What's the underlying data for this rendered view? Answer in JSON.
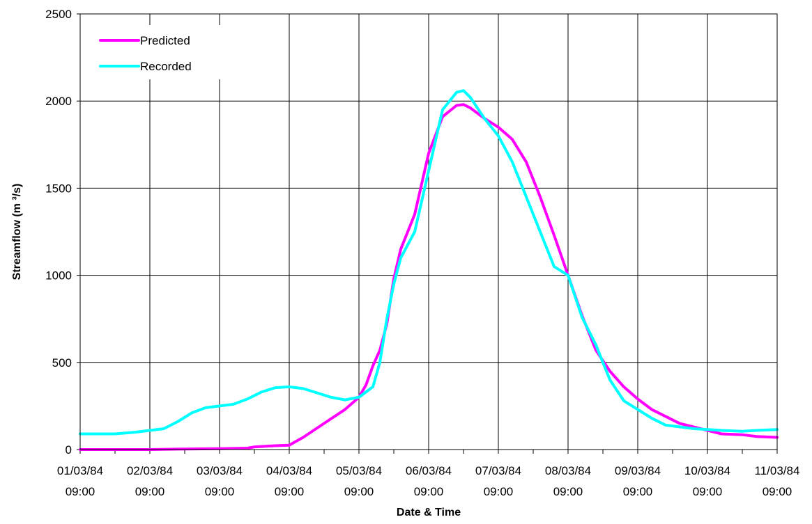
{
  "chart_data": {
    "type": "line",
    "title": "",
    "xlabel": "Date & Time",
    "ylabel": "Streamflow (m ³/s)",
    "ylim": [
      0,
      2500
    ],
    "xlim": [
      0,
      10
    ],
    "yticks": [
      0,
      500,
      1000,
      1500,
      2000,
      2500
    ],
    "xticks": [
      {
        "value": 0,
        "date": "01/03/84",
        "time": "09:00"
      },
      {
        "value": 1,
        "date": "02/03/84",
        "time": "09:00"
      },
      {
        "value": 2,
        "date": "03/03/84",
        "time": "09:00"
      },
      {
        "value": 3,
        "date": "04/03/84",
        "time": "09:00"
      },
      {
        "value": 4,
        "date": "05/03/84",
        "time": "09:00"
      },
      {
        "value": 5,
        "date": "06/03/84",
        "time": "09:00"
      },
      {
        "value": 6,
        "date": "07/03/84",
        "time": "09:00"
      },
      {
        "value": 7,
        "date": "08/03/84",
        "time": "09:00"
      },
      {
        "value": 8,
        "date": "09/03/84",
        "time": "09:00"
      },
      {
        "value": 9,
        "date": "10/03/84",
        "time": "09:00"
      },
      {
        "value": 10,
        "date": "11/03/84",
        "time": "09:00"
      }
    ],
    "grid": true,
    "legend_position": "top-left",
    "series": [
      {
        "name": "Predicted",
        "color": "#ff00ff",
        "x": [
          0,
          1,
          1.5,
          2,
          2.4,
          2.5,
          2.8,
          3.0,
          3.2,
          3.5,
          3.8,
          4.0,
          4.1,
          4.2,
          4.3,
          4.4,
          4.5,
          4.6,
          4.8,
          5.0,
          5.2,
          5.4,
          5.5,
          5.6,
          5.8,
          6.0,
          6.2,
          6.4,
          6.6,
          6.8,
          7.0,
          7.2,
          7.4,
          7.6,
          7.8,
          8.0,
          8.2,
          8.4,
          8.6,
          8.8,
          9.0,
          9.2,
          9.5,
          9.7,
          10.0
        ],
        "values": [
          0,
          0,
          3,
          5,
          8,
          15,
          22,
          25,
          70,
          150,
          230,
          300,
          370,
          480,
          570,
          720,
          980,
          1150,
          1350,
          1700,
          1910,
          1975,
          1980,
          1960,
          1900,
          1850,
          1780,
          1650,
          1450,
          1230,
          1000,
          770,
          570,
          450,
          360,
          290,
          230,
          190,
          150,
          130,
          110,
          90,
          85,
          75,
          70
        ]
      },
      {
        "name": "Recorded",
        "color": "#00ffff",
        "x": [
          0,
          0.5,
          0.8,
          1.0,
          1.2,
          1.4,
          1.6,
          1.8,
          2.0,
          2.2,
          2.4,
          2.6,
          2.8,
          3.0,
          3.2,
          3.4,
          3.6,
          3.8,
          4.0,
          4.2,
          4.3,
          4.4,
          4.5,
          4.6,
          4.8,
          5.0,
          5.2,
          5.4,
          5.5,
          5.6,
          5.8,
          6.0,
          6.2,
          6.4,
          6.6,
          6.8,
          7.0,
          7.2,
          7.4,
          7.6,
          7.8,
          8.0,
          8.2,
          8.4,
          8.6,
          8.8,
          9.0,
          9.2,
          9.5,
          9.7,
          10.0
        ],
        "values": [
          90,
          90,
          100,
          110,
          120,
          160,
          210,
          240,
          250,
          260,
          290,
          330,
          355,
          360,
          350,
          325,
          300,
          285,
          300,
          360,
          500,
          750,
          950,
          1100,
          1250,
          1600,
          1950,
          2050,
          2060,
          2020,
          1900,
          1800,
          1650,
          1450,
          1250,
          1050,
          1000,
          760,
          600,
          400,
          280,
          230,
          180,
          140,
          130,
          120,
          115,
          110,
          105,
          110,
          115
        ]
      }
    ]
  }
}
